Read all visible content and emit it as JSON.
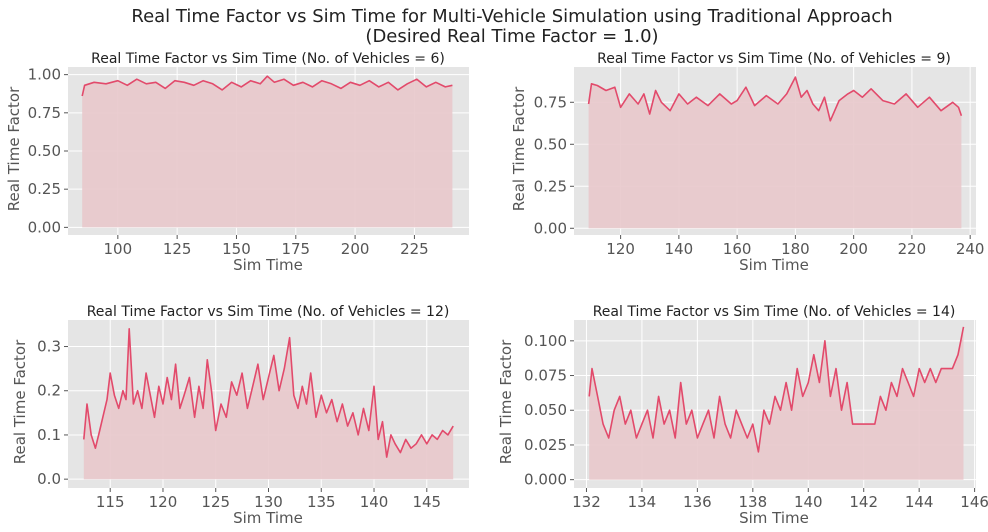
{
  "figure": {
    "title_line1": "Real Time Factor vs Sim Time for Multi-Vehicle Simulation using Traditional Approach",
    "title_line2": "(Desired Real Time Factor = 1.0)"
  },
  "style": {
    "line_color": "#e24a6b",
    "fill_color": "#e8c8cb",
    "axes_bg": "#e5e5e5",
    "grid_color": "#ffffff"
  },
  "chart_data": [
    {
      "type": "line",
      "title": "Real Time Factor vs Sim Time (No. of Vehicles = 6)",
      "xlabel": "Sim Time",
      "ylabel": "Real Time Factor",
      "xlim": [
        79,
        248
      ],
      "ylim": [
        -0.05,
        1.05
      ],
      "xticks": [
        100,
        125,
        150,
        175,
        200,
        225
      ],
      "xtick_labels": [
        "100",
        "125",
        "150",
        "175",
        "200",
        "225"
      ],
      "yticks": [
        0,
        0.25,
        0.5,
        0.75,
        1.0
      ],
      "ytick_labels": [
        "0.00",
        "0.25",
        "0.50",
        "0.75",
        "1.00"
      ],
      "grid": true,
      "filled": true,
      "series": [
        {
          "x": [
            85,
            86,
            90,
            95,
            100,
            104,
            108,
            112,
            116,
            120,
            124,
            128,
            132,
            136,
            140,
            144,
            148,
            152,
            156,
            160,
            163,
            166,
            170,
            174,
            178,
            182,
            186,
            190,
            194,
            198,
            202,
            206,
            210,
            214,
            218,
            222,
            226,
            230,
            234,
            238,
            241
          ],
          "y": [
            0.86,
            0.93,
            0.95,
            0.94,
            0.96,
            0.93,
            0.97,
            0.94,
            0.95,
            0.91,
            0.96,
            0.95,
            0.93,
            0.96,
            0.94,
            0.9,
            0.95,
            0.92,
            0.96,
            0.94,
            0.99,
            0.95,
            0.97,
            0.93,
            0.95,
            0.92,
            0.96,
            0.94,
            0.91,
            0.95,
            0.93,
            0.96,
            0.92,
            0.95,
            0.9,
            0.94,
            0.97,
            0.92,
            0.95,
            0.92,
            0.93
          ]
        }
      ]
    },
    {
      "type": "line",
      "title": "Real Time Factor vs Sim Time  (No. of Vehicles = 9)",
      "xlabel": "Sim Time",
      "ylabel": "Real Time Factor",
      "xlim": [
        104,
        242
      ],
      "ylim": [
        -0.04,
        0.96
      ],
      "xticks": [
        120,
        140,
        160,
        180,
        200,
        220,
        240
      ],
      "xtick_labels": [
        "120",
        "140",
        "160",
        "180",
        "200",
        "220",
        "240"
      ],
      "yticks": [
        0,
        0.25,
        0.5,
        0.75
      ],
      "ytick_labels": [
        "0.00",
        "0.25",
        "0.50",
        "0.75"
      ],
      "grid": true,
      "filled": true,
      "series": [
        {
          "x": [
            109,
            110,
            112,
            115,
            118,
            120,
            123,
            126,
            128,
            130,
            132,
            134,
            137,
            140,
            143,
            146,
            150,
            154,
            158,
            160,
            163,
            166,
            170,
            174,
            177,
            180,
            182,
            184,
            186,
            188,
            190,
            192,
            195,
            198,
            200,
            203,
            206,
            210,
            214,
            218,
            222,
            226,
            230,
            234,
            236,
            237
          ],
          "y": [
            0.74,
            0.86,
            0.85,
            0.82,
            0.84,
            0.72,
            0.8,
            0.74,
            0.8,
            0.68,
            0.82,
            0.75,
            0.7,
            0.8,
            0.74,
            0.78,
            0.73,
            0.8,
            0.74,
            0.76,
            0.84,
            0.73,
            0.79,
            0.74,
            0.8,
            0.9,
            0.78,
            0.82,
            0.74,
            0.7,
            0.78,
            0.64,
            0.76,
            0.8,
            0.82,
            0.78,
            0.83,
            0.76,
            0.74,
            0.8,
            0.72,
            0.78,
            0.7,
            0.75,
            0.72,
            0.67
          ]
        }
      ]
    },
    {
      "type": "line",
      "title": "Real Time Factor vs Sim Time  (No. of Vehicles = 12)",
      "xlabel": "Sim Time",
      "ylabel": "Real Time Factor",
      "xlim": [
        111,
        149
      ],
      "ylim": [
        -0.02,
        0.36
      ],
      "xticks": [
        115,
        120,
        125,
        130,
        135,
        140,
        145
      ],
      "xtick_labels": [
        "115",
        "120",
        "125",
        "130",
        "135",
        "140",
        "145"
      ],
      "yticks": [
        0,
        0.1,
        0.2,
        0.3
      ],
      "ytick_labels": [
        "0.0",
        "0.1",
        "0.2",
        "0.3"
      ],
      "grid": true,
      "filled": true,
      "series": [
        {
          "x": [
            112.5,
            112.8,
            113.2,
            113.6,
            114.0,
            114.3,
            114.7,
            115.0,
            115.4,
            115.8,
            116.2,
            116.5,
            116.8,
            117.2,
            117.6,
            118.0,
            118.4,
            118.8,
            119.2,
            119.6,
            120.0,
            120.4,
            120.8,
            121.2,
            121.6,
            122.0,
            122.5,
            123.0,
            123.4,
            123.8,
            124.2,
            124.6,
            125.0,
            125.5,
            126.0,
            126.5,
            127.0,
            127.5,
            128.0,
            128.5,
            129.0,
            129.5,
            130.0,
            130.5,
            131.0,
            131.5,
            132.0,
            132.4,
            132.8,
            133.2,
            133.6,
            134.0,
            134.5,
            135.0,
            135.5,
            136.0,
            136.5,
            137.0,
            137.5,
            138.0,
            138.5,
            139.0,
            139.5,
            140.0,
            140.4,
            140.8,
            141.2,
            141.6,
            142.0,
            142.5,
            143.0,
            143.5,
            144.0,
            144.5,
            145.0,
            145.5,
            146.0,
            146.5,
            147.0,
            147.5
          ],
          "y": [
            0.09,
            0.17,
            0.1,
            0.07,
            0.11,
            0.14,
            0.18,
            0.24,
            0.19,
            0.16,
            0.2,
            0.18,
            0.34,
            0.17,
            0.2,
            0.16,
            0.24,
            0.19,
            0.14,
            0.21,
            0.17,
            0.23,
            0.18,
            0.26,
            0.16,
            0.19,
            0.23,
            0.14,
            0.21,
            0.16,
            0.27,
            0.2,
            0.11,
            0.17,
            0.14,
            0.22,
            0.19,
            0.24,
            0.16,
            0.21,
            0.26,
            0.18,
            0.23,
            0.28,
            0.2,
            0.25,
            0.32,
            0.19,
            0.16,
            0.21,
            0.17,
            0.24,
            0.14,
            0.19,
            0.15,
            0.18,
            0.13,
            0.17,
            0.12,
            0.15,
            0.1,
            0.16,
            0.11,
            0.21,
            0.09,
            0.13,
            0.05,
            0.1,
            0.08,
            0.06,
            0.09,
            0.07,
            0.08,
            0.1,
            0.08,
            0.1,
            0.09,
            0.11,
            0.1,
            0.12
          ]
        }
      ]
    },
    {
      "type": "line",
      "title": "Real Time Factor vs Sim Time  (No. of Vehicles = 14)",
      "xlabel": "Sim Time",
      "ylabel": "Real Time Factor",
      "xlim": [
        131.55,
        146.05
      ],
      "ylim": [
        -0.006,
        0.115
      ],
      "xticks": [
        132,
        134,
        136,
        138,
        140,
        142,
        144,
        146
      ],
      "xtick_labels": [
        "132",
        "134",
        "136",
        "138",
        "140",
        "142",
        "144",
        "146"
      ],
      "yticks": [
        0,
        0.025,
        0.05,
        0.075,
        0.1
      ],
      "ytick_labels": [
        "0.000",
        "0.025",
        "0.050",
        "0.075",
        "0.100"
      ],
      "grid": true,
      "filled": true,
      "series": [
        {
          "x": [
            132.1,
            132.2,
            132.4,
            132.6,
            132.8,
            133.0,
            133.2,
            133.4,
            133.6,
            133.8,
            134.0,
            134.2,
            134.4,
            134.6,
            134.8,
            135.0,
            135.2,
            135.4,
            135.6,
            135.8,
            136.0,
            136.2,
            136.4,
            136.6,
            136.8,
            137.0,
            137.2,
            137.4,
            137.6,
            137.8,
            138.0,
            138.2,
            138.4,
            138.6,
            138.8,
            139.0,
            139.2,
            139.4,
            139.6,
            139.8,
            140.0,
            140.2,
            140.4,
            140.6,
            140.8,
            141.0,
            141.2,
            141.4,
            141.6,
            141.8,
            142.0,
            142.2,
            142.4,
            142.6,
            142.8,
            143.0,
            143.2,
            143.4,
            143.6,
            143.8,
            144.0,
            144.2,
            144.4,
            144.6,
            144.8,
            145.0,
            145.2,
            145.4,
            145.5,
            145.6
          ],
          "y": [
            0.06,
            0.08,
            0.06,
            0.04,
            0.03,
            0.05,
            0.06,
            0.04,
            0.05,
            0.03,
            0.04,
            0.05,
            0.03,
            0.06,
            0.04,
            0.05,
            0.03,
            0.07,
            0.04,
            0.05,
            0.03,
            0.04,
            0.05,
            0.03,
            0.06,
            0.04,
            0.03,
            0.05,
            0.04,
            0.03,
            0.04,
            0.02,
            0.05,
            0.04,
            0.06,
            0.05,
            0.07,
            0.05,
            0.08,
            0.06,
            0.07,
            0.09,
            0.07,
            0.1,
            0.06,
            0.08,
            0.05,
            0.07,
            0.04,
            0.04,
            0.04,
            0.04,
            0.04,
            0.06,
            0.05,
            0.07,
            0.06,
            0.08,
            0.07,
            0.06,
            0.08,
            0.07,
            0.08,
            0.07,
            0.08,
            0.08,
            0.08,
            0.09,
            0.1,
            0.11
          ]
        }
      ]
    }
  ]
}
